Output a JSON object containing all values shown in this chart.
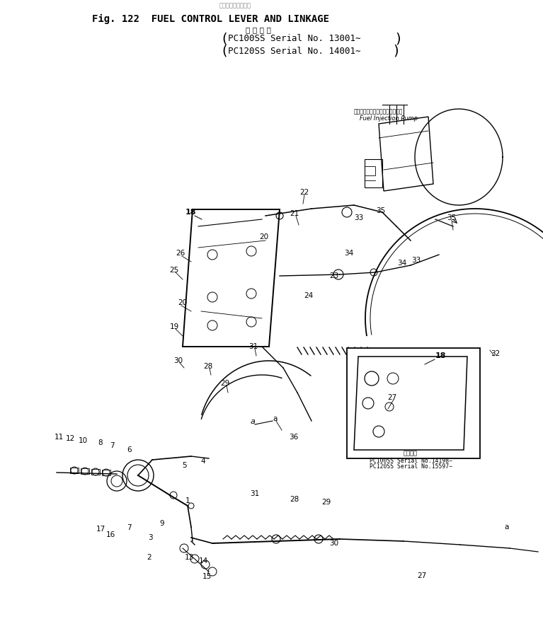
{
  "bg_color": "#ffffff",
  "title_japanese": "燃料調速手柄及連桿",
  "title_fig": "Fig. 122  FUEL CONTROL LEVER AND LINKAGE",
  "title_apply": "適 用 号 機",
  "title_serial1": "PC100SS Serial No. 13001∼",
  "title_serial2": "PC120SS Serial No. 14001∼",
  "pump_jp": "フェエルインジェクションポンプ",
  "pump_en": "Fuel Injection Pump",
  "inset_apply": "適用号機",
  "inset_serial1": "PC100SS Serial No.14198∼",
  "inset_serial2": "PC120SS Serial No.15597∼",
  "part18_label": "18"
}
